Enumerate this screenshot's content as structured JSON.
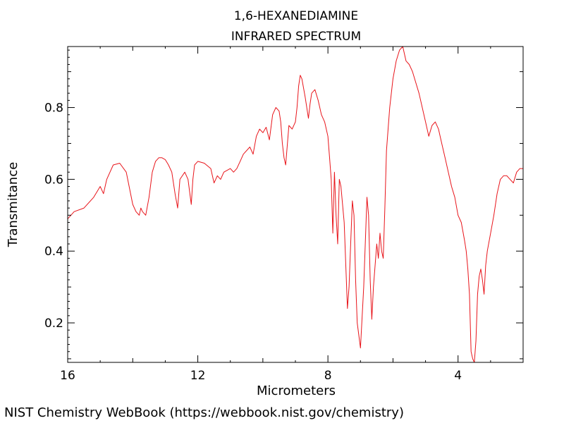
{
  "chart_data": {
    "type": "line",
    "title": "1,6-HEXANEDIAMINE",
    "subtitle": "INFRARED SPECTRUM",
    "xlabel": "Micrometers",
    "ylabel": "Transmitance",
    "xlim": [
      16,
      2
    ],
    "ylim": [
      0.09,
      0.97
    ],
    "x_ticks": [
      16,
      12,
      8,
      4
    ],
    "y_ticks": [
      0.2,
      0.4,
      0.6,
      0.8
    ],
    "line_color": "#e8141a",
    "series": [
      {
        "x": [
          16.0,
          15.8,
          15.5,
          15.2,
          15.0,
          14.9,
          14.8,
          14.7,
          14.6,
          14.4,
          14.2,
          14.0,
          13.9,
          13.8,
          13.75,
          13.7,
          13.6,
          13.5,
          13.4,
          13.3,
          13.2,
          13.1,
          13.0,
          12.9,
          12.8,
          12.7,
          12.62,
          12.55,
          12.4,
          12.3,
          12.2,
          12.15,
          12.1,
          12.0,
          11.8,
          11.6,
          11.5,
          11.4,
          11.3,
          11.2,
          11.0,
          10.9,
          10.8,
          10.7,
          10.6,
          10.4,
          10.3,
          10.2,
          10.1,
          10.0,
          9.9,
          9.8,
          9.7,
          9.6,
          9.5,
          9.45,
          9.4,
          9.35,
          9.3,
          9.2,
          9.1,
          9.0,
          8.95,
          8.9,
          8.85,
          8.8,
          8.7,
          8.6,
          8.55,
          8.5,
          8.4,
          8.3,
          8.2,
          8.1,
          8.0,
          7.95,
          7.9,
          7.85,
          7.8,
          7.75,
          7.7,
          7.65,
          7.6,
          7.5,
          7.45,
          7.4,
          7.35,
          7.3,
          7.25,
          7.2,
          7.15,
          7.1,
          7.0,
          6.9,
          6.8,
          6.75,
          6.7,
          6.65,
          6.6,
          6.5,
          6.45,
          6.4,
          6.35,
          6.3,
          6.25,
          6.2,
          6.1,
          6.0,
          5.9,
          5.8,
          5.7,
          5.6,
          5.5,
          5.4,
          5.2,
          5.0,
          4.9,
          4.8,
          4.7,
          4.6,
          4.5,
          4.4,
          4.3,
          4.2,
          4.1,
          4.0,
          3.9,
          3.8,
          3.75,
          3.7,
          3.65,
          3.6,
          3.55,
          3.5,
          3.45,
          3.4,
          3.35,
          3.3,
          3.25,
          3.2,
          3.15,
          3.1,
          3.0,
          2.9,
          2.8,
          2.7,
          2.6,
          2.5,
          2.4,
          2.3,
          2.2,
          2.1,
          2.0
        ],
        "y": [
          0.49,
          0.51,
          0.52,
          0.55,
          0.58,
          0.56,
          0.6,
          0.62,
          0.64,
          0.645,
          0.62,
          0.53,
          0.51,
          0.5,
          0.52,
          0.51,
          0.5,
          0.55,
          0.62,
          0.65,
          0.66,
          0.66,
          0.655,
          0.64,
          0.62,
          0.56,
          0.52,
          0.6,
          0.62,
          0.6,
          0.53,
          0.6,
          0.64,
          0.65,
          0.645,
          0.63,
          0.59,
          0.61,
          0.6,
          0.62,
          0.63,
          0.62,
          0.63,
          0.65,
          0.67,
          0.69,
          0.67,
          0.72,
          0.74,
          0.73,
          0.745,
          0.71,
          0.78,
          0.8,
          0.79,
          0.76,
          0.7,
          0.66,
          0.64,
          0.75,
          0.74,
          0.76,
          0.8,
          0.86,
          0.89,
          0.88,
          0.83,
          0.77,
          0.81,
          0.84,
          0.85,
          0.82,
          0.78,
          0.76,
          0.72,
          0.66,
          0.6,
          0.45,
          0.62,
          0.5,
          0.42,
          0.6,
          0.58,
          0.48,
          0.36,
          0.24,
          0.3,
          0.42,
          0.54,
          0.5,
          0.32,
          0.2,
          0.13,
          0.3,
          0.55,
          0.5,
          0.32,
          0.21,
          0.3,
          0.42,
          0.38,
          0.45,
          0.4,
          0.38,
          0.52,
          0.68,
          0.8,
          0.88,
          0.93,
          0.96,
          0.97,
          0.93,
          0.92,
          0.9,
          0.84,
          0.76,
          0.72,
          0.75,
          0.76,
          0.74,
          0.7,
          0.66,
          0.62,
          0.58,
          0.55,
          0.5,
          0.48,
          0.43,
          0.4,
          0.35,
          0.28,
          0.12,
          0.1,
          0.09,
          0.15,
          0.28,
          0.33,
          0.35,
          0.32,
          0.28,
          0.36,
          0.4,
          0.45,
          0.5,
          0.56,
          0.6,
          0.61,
          0.61,
          0.6,
          0.59,
          0.62,
          0.63,
          0.63
        ]
      }
    ]
  },
  "footer": {
    "text": "NIST Chemistry WebBook (https://webbook.nist.gov/chemistry)"
  }
}
